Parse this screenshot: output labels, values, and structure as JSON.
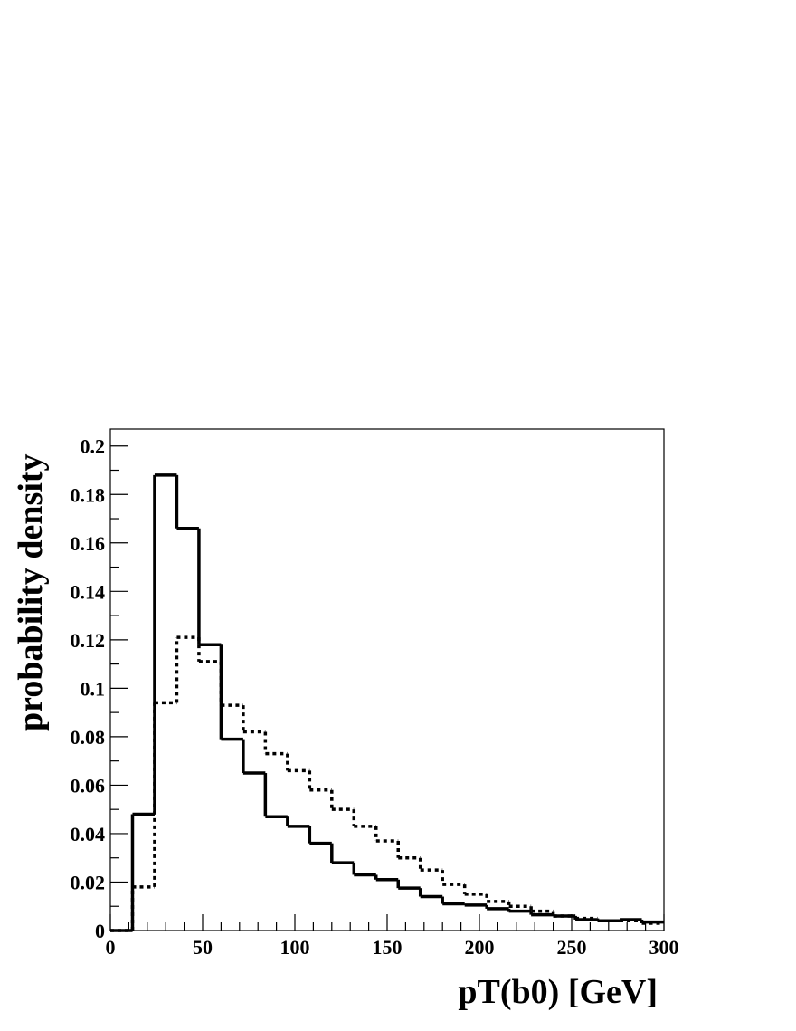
{
  "chart_data": {
    "type": "histogram",
    "xlabel": "pT(b0) [GeV]",
    "ylabel": "probability density",
    "bins": [
      0,
      12,
      24,
      36,
      48,
      60,
      72,
      84,
      96,
      108,
      120,
      132,
      144,
      156,
      168,
      180,
      192,
      204,
      216,
      228,
      240,
      252,
      264,
      276,
      288,
      300
    ],
    "series": [
      {
        "color": "#000000",
        "linestyle": "solid",
        "values": [
          0,
          0.048,
          0.188,
          0.166,
          0.118,
          0.079,
          0.065,
          0.047,
          0.043,
          0.036,
          0.028,
          0.023,
          0.021,
          0.0175,
          0.014,
          0.011,
          0.0105,
          0.009,
          0.008,
          0.0065,
          0.006,
          0.0045,
          0.004,
          0.0045,
          0.0035
        ]
      },
      {
        "color": "#000000",
        "linestyle": "dotted",
        "values": [
          0,
          0.018,
          0.094,
          0.121,
          0.111,
          0.093,
          0.082,
          0.073,
          0.066,
          0.058,
          0.05,
          0.043,
          0.037,
          0.03,
          0.025,
          0.019,
          0.015,
          0.012,
          0.01,
          0.008,
          0.006,
          0.005,
          0.004,
          0.004,
          0.003
        ]
      }
    ],
    "xlim": [
      0,
      300
    ],
    "xticks": [
      0,
      50,
      100,
      150,
      200,
      250,
      300
    ],
    "ylim": [
      0,
      0.207
    ],
    "yticks": [
      0,
      0.02,
      0.04,
      0.06,
      0.08,
      0.1,
      0.12,
      0.14,
      0.16,
      0.18,
      0.2
    ]
  }
}
